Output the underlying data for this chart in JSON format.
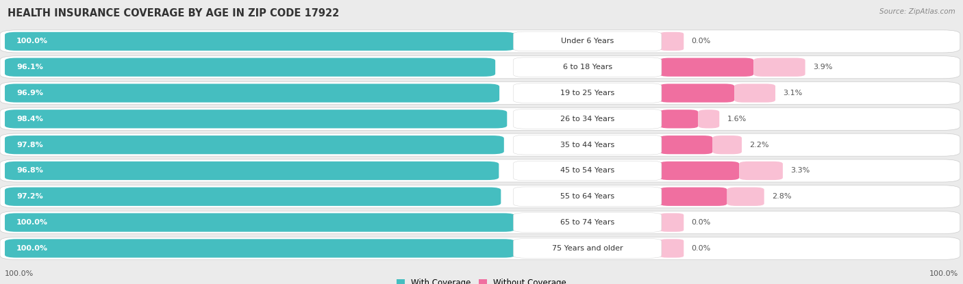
{
  "title": "HEALTH INSURANCE COVERAGE BY AGE IN ZIP CODE 17922",
  "source": "Source: ZipAtlas.com",
  "categories": [
    "Under 6 Years",
    "6 to 18 Years",
    "19 to 25 Years",
    "26 to 34 Years",
    "35 to 44 Years",
    "45 to 54 Years",
    "55 to 64 Years",
    "65 to 74 Years",
    "75 Years and older"
  ],
  "with_coverage": [
    100.0,
    96.1,
    96.9,
    98.4,
    97.8,
    96.8,
    97.2,
    100.0,
    100.0
  ],
  "without_coverage": [
    0.0,
    3.9,
    3.1,
    1.6,
    2.2,
    3.3,
    2.8,
    0.0,
    0.0
  ],
  "color_with": "#45BEC0",
  "color_without": "#F06FA0",
  "color_without_light": "#F9C0D4",
  "bg_color": "#EBEBEB",
  "bar_bg_color": "#FFFFFF",
  "title_fontsize": 10.5,
  "bar_label_fontsize": 8,
  "cat_label_fontsize": 8,
  "pct_label_fontsize": 8,
  "legend_fontsize": 8.5,
  "source_fontsize": 7.5
}
